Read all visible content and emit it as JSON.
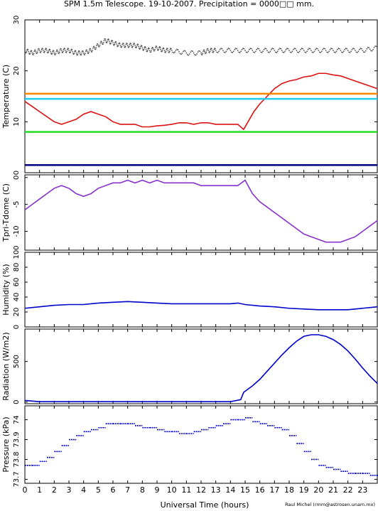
{
  "title": "SPM 1.5m Telescope. 19-10-2007. Precipitation = 0000□□ mm.",
  "xlabel": "Universal Time (hours)",
  "credit": "Raul Michel (rmm@astrosen.unam.mx)",
  "x_ticks": [
    "0",
    "1",
    "2",
    "3",
    "4",
    "5",
    "6",
    "7",
    "8",
    "9",
    "10",
    "11",
    "12",
    "13",
    "14",
    "15",
    "16",
    "17",
    "18",
    "19",
    "20",
    "21",
    "22",
    "23"
  ],
  "colors": {
    "ext_temp": "#555555",
    "red_temp": "#dd1111",
    "orange": "#ff8800",
    "cyan": "#22ccee",
    "green": "#22dd22",
    "navy": "#000080",
    "purple": "#8833cc",
    "blue": "#0000cc"
  },
  "chart_data": [
    {
      "type": "line",
      "ylabel": "Temperature (C)",
      "xlim": [
        0,
        24
      ],
      "ylim": [
        0,
        30
      ],
      "y_ticks": [
        "0",
        "10",
        "20",
        "30"
      ],
      "series": [
        {
          "key": "ext",
          "color_key": "ext_temp",
          "style": "scatter",
          "x": [
            0,
            0.5,
            1,
            1.5,
            2,
            2.5,
            3,
            3.5,
            4,
            4.5,
            5,
            5.5,
            6,
            6.5,
            7,
            7.5,
            8,
            8.5,
            9,
            9.5,
            10,
            11,
            12,
            12.5,
            13,
            14,
            15,
            16,
            17,
            18,
            19,
            20,
            21,
            22,
            23,
            24
          ],
          "y": [
            24,
            23.5,
            24,
            24,
            23.5,
            24,
            24,
            23.5,
            23.5,
            24,
            25,
            26,
            25.5,
            25,
            25,
            25,
            24.5,
            24,
            24.5,
            24,
            24,
            23.5,
            23.5,
            24,
            24,
            24,
            24,
            24,
            24,
            24,
            24,
            24,
            24,
            24,
            24,
            24.5
          ]
        },
        {
          "key": "red",
          "color_key": "red_temp",
          "style": "line",
          "x": [
            0,
            0.5,
            1,
            1.5,
            2,
            2.5,
            3,
            3.5,
            4,
            4.5,
            5,
            5.5,
            6,
            6.5,
            7,
            7.5,
            8,
            8.5,
            9,
            9.5,
            10,
            10.5,
            11,
            11.5,
            12,
            12.5,
            13,
            13.5,
            14,
            14.5,
            14.9,
            15.2,
            15.6,
            16,
            16.5,
            17,
            17.5,
            18,
            18.5,
            19,
            19.5,
            20,
            20.5,
            21,
            21.5,
            22,
            22.5,
            23,
            23.5,
            24
          ],
          "y": [
            14,
            13,
            12,
            11,
            10,
            9.5,
            10,
            10.5,
            11.5,
            12,
            11.5,
            11,
            10,
            9.5,
            9.5,
            9.5,
            9,
            9,
            9.2,
            9.3,
            9.5,
            9.8,
            9.8,
            9.5,
            9.8,
            9.8,
            9.5,
            9.5,
            9.5,
            9.5,
            8.5,
            10,
            12,
            13.5,
            15,
            16.5,
            17.5,
            18,
            18.3,
            18.8,
            19,
            19.5,
            19.5,
            19.2,
            19,
            18.5,
            18,
            17.5,
            17,
            16.5
          ]
        },
        {
          "key": "orange",
          "color_key": "orange",
          "style": "line",
          "x": [
            0,
            24
          ],
          "y": [
            15.5,
            15.5
          ]
        },
        {
          "key": "cyan",
          "color_key": "cyan",
          "style": "line",
          "x": [
            0,
            24
          ],
          "y": [
            14.5,
            14.5
          ]
        },
        {
          "key": "green",
          "color_key": "green",
          "style": "line",
          "x": [
            0,
            24
          ],
          "y": [
            8,
            8
          ]
        },
        {
          "key": "navy",
          "color_key": "navy",
          "style": "line",
          "x": [
            0,
            24
          ],
          "y": [
            1.5,
            1.5
          ]
        }
      ]
    },
    {
      "type": "line",
      "ylabel": "Tpri-Tdome (C)",
      "xlim": [
        0,
        24
      ],
      "ylim": [
        -13.5,
        0.5
      ],
      "y_ticks": [
        "-10",
        "-5",
        "0"
      ],
      "y_tick_values": [
        -10,
        -5,
        0
      ],
      "series": [
        {
          "key": "tdiff",
          "color_key": "purple",
          "style": "line",
          "x": [
            0,
            0.5,
            1,
            1.5,
            2,
            2.5,
            3,
            3.5,
            4,
            4.5,
            5,
            5.5,
            6,
            6.5,
            7,
            7.5,
            8,
            8.5,
            9,
            9.5,
            10,
            10.5,
            11,
            11.5,
            12,
            12.5,
            13,
            13.5,
            14,
            14.5,
            15,
            15.5,
            16,
            16.5,
            17,
            17.5,
            18,
            18.5,
            19,
            19.5,
            20,
            20.5,
            21,
            21.5,
            22,
            22.5,
            23,
            23.5,
            24
          ],
          "y": [
            -6,
            -5,
            -4,
            -3,
            -2,
            -1.5,
            -2,
            -3,
            -3.5,
            -3,
            -2,
            -1.5,
            -1,
            -1,
            -0.5,
            -1,
            -0.5,
            -1,
            -0.5,
            -1,
            -1,
            -1,
            -1,
            -1,
            -1.5,
            -1.5,
            -1.5,
            -1.5,
            -1.5,
            -1.5,
            -0.5,
            -3,
            -4.5,
            -5.5,
            -6.5,
            -7.5,
            -8.5,
            -9.5,
            -10.5,
            -11,
            -11.5,
            -12,
            -12,
            -12,
            -11.5,
            -11,
            -10,
            -9,
            -8
          ]
        }
      ]
    },
    {
      "type": "line",
      "ylabel": "Humidity (%)",
      "xlim": [
        0,
        24
      ],
      "ylim": [
        0,
        100
      ],
      "y_ticks": [
        "0",
        "20",
        "40",
        "60",
        "80",
        "100"
      ],
      "y_tick_values": [
        0,
        20,
        40,
        60,
        80,
        100
      ],
      "series": [
        {
          "key": "hum",
          "color_key": "blue",
          "style": "line",
          "x": [
            0,
            1,
            2,
            3,
            4,
            5,
            6,
            7,
            8,
            9,
            10,
            11,
            12,
            13,
            14,
            14.5,
            15,
            16,
            17,
            18,
            19,
            20,
            21,
            22,
            23,
            24
          ],
          "y": [
            25,
            27,
            29,
            30,
            30,
            32,
            33,
            34,
            33,
            32,
            31,
            31,
            31,
            31,
            31,
            32,
            30,
            28,
            27,
            25,
            24,
            23,
            23,
            23,
            25,
            27
          ]
        }
      ]
    },
    {
      "type": "line",
      "ylabel": "Radiation (W/m2)",
      "xlim": [
        0,
        24
      ],
      "ylim": [
        -20,
        900
      ],
      "y_ticks": [
        "0",
        "500"
      ],
      "y_tick_values": [
        0,
        500
      ],
      "series": [
        {
          "key": "rad",
          "color_key": "blue",
          "style": "line",
          "x": [
            0,
            1,
            2,
            3,
            4,
            5,
            6,
            7,
            8,
            9,
            10,
            11,
            12,
            13,
            14,
            14.7,
            14.9,
            15.5,
            16,
            16.5,
            17,
            17.5,
            18,
            18.5,
            19,
            19.5,
            20,
            20.5,
            21,
            21.5,
            22,
            22.5,
            23,
            23.5,
            24
          ],
          "y": [
            20,
            5,
            5,
            5,
            5,
            5,
            5,
            5,
            5,
            5,
            5,
            5,
            5,
            5,
            5,
            30,
            120,
            200,
            280,
            380,
            480,
            580,
            670,
            750,
            810,
            830,
            830,
            810,
            770,
            710,
            630,
            530,
            420,
            320,
            230
          ]
        }
      ]
    },
    {
      "type": "scatter",
      "ylabel": "Pressure (kPa)",
      "xlim": [
        0,
        24
      ],
      "ylim": [
        73.68,
        74.07
      ],
      "y_ticks": [
        "73.7",
        "73.8",
        "73.9",
        "74"
      ],
      "y_tick_values": [
        73.7,
        73.8,
        73.9,
        74
      ],
      "series": [
        {
          "key": "pres",
          "color_key": "blue",
          "style": "steps",
          "x": [
            0,
            0.5,
            1,
            1.5,
            2,
            2.5,
            3,
            3.5,
            4,
            4.5,
            5,
            5.5,
            6,
            6.5,
            7,
            7.5,
            8,
            8.5,
            9,
            9.5,
            10,
            10.5,
            11,
            11.5,
            12,
            12.5,
            13,
            13.5,
            14,
            14.5,
            15,
            15.5,
            16,
            16.5,
            17,
            17.5,
            18,
            18.5,
            19,
            19.5,
            20,
            20.5,
            21,
            21.5,
            22,
            22.5,
            23,
            23.5,
            24
          ],
          "y": [
            73.77,
            73.77,
            73.79,
            73.81,
            73.84,
            73.87,
            73.9,
            73.92,
            73.94,
            73.95,
            73.96,
            73.98,
            73.98,
            73.98,
            73.98,
            73.97,
            73.96,
            73.96,
            73.95,
            73.94,
            73.94,
            73.93,
            73.93,
            73.94,
            73.95,
            73.96,
            73.97,
            73.98,
            74.0,
            74.0,
            74.01,
            73.99,
            73.98,
            73.97,
            73.96,
            73.95,
            73.92,
            73.88,
            73.84,
            73.8,
            73.77,
            73.76,
            73.75,
            73.74,
            73.73,
            73.73,
            73.73,
            73.72,
            73.72
          ]
        }
      ]
    }
  ]
}
